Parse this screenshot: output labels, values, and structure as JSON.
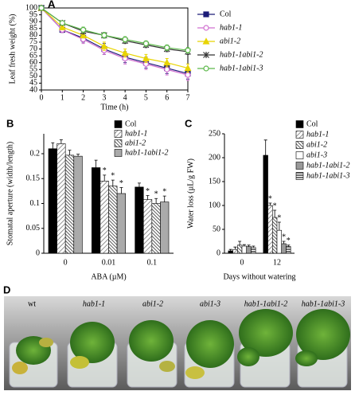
{
  "chart_data": [
    {
      "type": "line",
      "label": "A",
      "ylabel": "Leaf fresh weight (%)",
      "xlabel": "Time (h)",
      "frame": "box",
      "legend": "right-outside",
      "x": [
        0,
        1,
        2,
        3,
        4,
        5,
        6,
        7
      ],
      "xlim": [
        0,
        7
      ],
      "xticks": [
        0,
        1,
        2,
        3,
        4,
        5,
        6,
        7
      ],
      "ylim": [
        40,
        100
      ],
      "yticks": [
        40,
        45,
        50,
        55,
        60,
        65,
        70,
        75,
        80,
        85,
        90,
        95,
        100
      ],
      "series": [
        {
          "name": "Col",
          "italic": false,
          "color": "#1c1c78",
          "marker": "square",
          "values": [
            100,
            84,
            78,
            70,
            64,
            60,
            56,
            52
          ],
          "errors": [
            0,
            2,
            3,
            4,
            4,
            4,
            4,
            4
          ]
        },
        {
          "name": "hab1-1",
          "italic": true,
          "color": "#d070d0",
          "marker": "open-circle",
          "values": [
            100,
            84,
            77,
            69,
            63,
            59,
            55,
            51
          ],
          "errors": [
            0,
            2,
            3,
            3,
            4,
            4,
            4,
            4
          ]
        },
        {
          "name": "abi1-2",
          "italic": true,
          "color": "#e8d400",
          "marker": "triangle",
          "values": [
            100,
            86,
            80,
            72,
            67,
            63,
            60,
            56
          ],
          "errors": [
            0,
            2,
            2,
            3,
            3,
            3,
            3,
            3
          ]
        },
        {
          "name": "hab1-1abi1-2",
          "italic": true,
          "color": "#333333",
          "marker": "star",
          "values": [
            100,
            89,
            83,
            80,
            76,
            73,
            70,
            68
          ],
          "errors": [
            0,
            1,
            2,
            2,
            2,
            2,
            2,
            2
          ]
        },
        {
          "name": "hab1-1abi1-3",
          "italic": true,
          "color": "#5cb84a",
          "marker": "open-circle",
          "values": [
            100,
            89,
            84,
            80,
            77,
            74,
            71,
            69
          ],
          "errors": [
            0,
            1,
            2,
            2,
            2,
            2,
            2,
            2
          ]
        }
      ]
    },
    {
      "type": "bar",
      "label": "B",
      "ylabel": "Stomatal aperture (width/length)",
      "xlabel": "ABA (µM)",
      "frame": "axes",
      "legend": "upper-right",
      "categories": [
        "0",
        "0.01",
        "0.1"
      ],
      "ylim": [
        0,
        0.24
      ],
      "yticks": [
        0,
        0.05,
        0.1,
        0.15,
        0.2
      ],
      "series": [
        {
          "name": "Col",
          "italic": false,
          "color": "#000000",
          "pattern": "solid",
          "values": [
            0.21,
            0.172,
            0.133
          ],
          "errors": [
            0.012,
            0.015,
            0.008
          ]
        },
        {
          "name": "hab1-1",
          "italic": true,
          "color": "#bbbbbb",
          "pattern": "diagonal",
          "values": [
            0.22,
            0.145,
            0.108
          ],
          "errors": [
            0.008,
            0.012,
            0.008
          ]
        },
        {
          "name": "abi1-2",
          "italic": true,
          "color": "#555555",
          "pattern": "dense-diagonal",
          "values": [
            0.197,
            0.135,
            0.1
          ],
          "errors": [
            0.01,
            0.012,
            0.01
          ]
        },
        {
          "name": "hab1-1abi1-2",
          "italic": true,
          "color": "#aaaaaa",
          "pattern": "solid",
          "values": [
            0.195,
            0.12,
            0.103
          ],
          "errors": [
            0.004,
            0.012,
            0.012
          ]
        }
      ],
      "annotations": [
        {
          "text": "*",
          "series": 1,
          "category": 1
        },
        {
          "text": "*",
          "series": 2,
          "category": 1
        },
        {
          "text": "*",
          "series": 3,
          "category": 1
        },
        {
          "text": "*",
          "series": 1,
          "category": 2
        },
        {
          "text": "*",
          "series": 2,
          "category": 2
        },
        {
          "text": "*",
          "series": 3,
          "category": 2
        }
      ]
    },
    {
      "type": "bar",
      "label": "C",
      "ylabel": "Water loss (µL/g FW)",
      "xlabel": "Days without watering",
      "frame": "axes",
      "legend": "right-outside",
      "categories": [
        "0",
        "12"
      ],
      "ylim": [
        0,
        250
      ],
      "yticks": [
        0,
        50,
        100,
        150,
        200,
        250
      ],
      "series": [
        {
          "name": "Col",
          "italic": false,
          "color": "#000000",
          "pattern": "solid",
          "values": [
            5,
            205
          ],
          "errors": [
            3,
            32
          ]
        },
        {
          "name": "hab1-1",
          "italic": true,
          "color": "#bbbbbb",
          "pattern": "diagonal",
          "values": [
            8,
            100
          ],
          "errors": [
            5,
            5
          ]
        },
        {
          "name": "abi1-2",
          "italic": true,
          "color": "#555555",
          "pattern": "dense-diagonal",
          "values": [
            17,
            75
          ],
          "errors": [
            8,
            15
          ]
        },
        {
          "name": "abi1-3",
          "italic": true,
          "color": "#ffffff",
          "pattern": "solid",
          "values": [
            15,
            48
          ],
          "errors": [
            3,
            17
          ]
        },
        {
          "name": "hab1-1abi1-2",
          "italic": true,
          "color": "#999999",
          "pattern": "solid",
          "values": [
            14,
            20
          ],
          "errors": [
            3,
            5
          ]
        },
        {
          "name": "hab1-1abi1-3",
          "italic": true,
          "color": "#666666",
          "pattern": "horizontal",
          "values": [
            12,
            14
          ],
          "errors": [
            3,
            3
          ]
        }
      ],
      "annotations": [
        {
          "text": "*",
          "series": 1,
          "category": 1
        },
        {
          "text": "*",
          "series": 2,
          "category": 1
        },
        {
          "text": "*",
          "series": 3,
          "category": 1
        },
        {
          "text": "*",
          "series": 4,
          "category": 1
        },
        {
          "text": "*",
          "series": 5,
          "category": 1
        }
      ]
    }
  ],
  "photo": {
    "label": "D",
    "captions": [
      {
        "text": "wt",
        "italic": false
      },
      {
        "text": "hab1-1",
        "italic": true
      },
      {
        "text": "abi1-2",
        "italic": true
      },
      {
        "text": "abi1-3",
        "italic": true
      },
      {
        "text": "hab1-1abi1-2",
        "italic": true
      },
      {
        "text": "hab1-1abi1-3",
        "italic": true
      }
    ]
  }
}
